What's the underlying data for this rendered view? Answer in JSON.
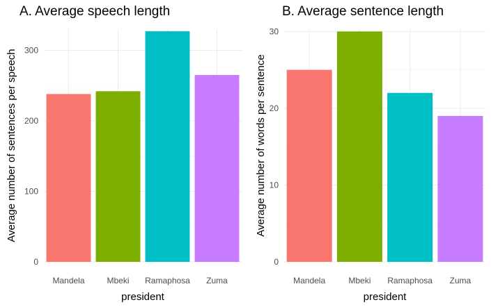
{
  "chart_data": [
    {
      "type": "bar",
      "title": "A. Average speech length",
      "xlabel": "president",
      "ylabel": "Average number of sentences per speech",
      "categories": [
        "Mandela",
        "Mbeki",
        "Ramaphosa",
        "Zuma"
      ],
      "values": [
        238,
        242,
        327,
        265
      ],
      "colors": [
        "#F8766D",
        "#7CAE00",
        "#00BFC4",
        "#C77CFF"
      ],
      "ylim": [
        0,
        330
      ],
      "yticks": [
        0,
        100,
        200,
        300
      ],
      "grid": true,
      "legend": "none"
    },
    {
      "type": "bar",
      "title": "B. Average sentence length",
      "xlabel": "president",
      "ylabel": "Average number of words per sentence",
      "categories": [
        "Mandela",
        "Mbeki",
        "Ramaphosa",
        "Zuma"
      ],
      "values": [
        25,
        30,
        22,
        19
      ],
      "colors": [
        "#F8766D",
        "#7CAE00",
        "#00BFC4",
        "#C77CFF"
      ],
      "ylim": [
        0,
        30.3
      ],
      "yticks": [
        0,
        10,
        20,
        30
      ],
      "grid": true,
      "legend": "none"
    }
  ]
}
